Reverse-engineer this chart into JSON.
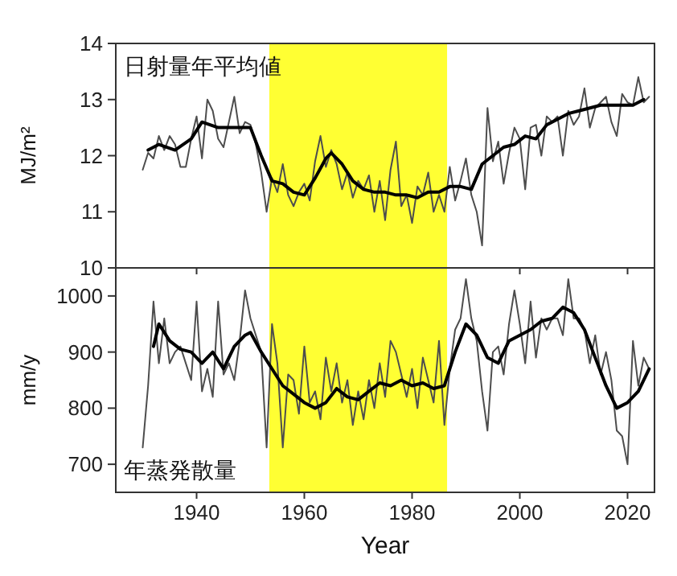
{
  "chart_data": [
    {
      "type": "line",
      "ylabel": "MJ/m²",
      "xlim": [
        1925,
        2025
      ],
      "xticks": [
        1940,
        1960,
        1980,
        2000,
        2020
      ],
      "ylim": [
        10,
        14
      ],
      "yticks": [
        10,
        11,
        12,
        13,
        14
      ],
      "tick_labels": "y",
      "grid": false,
      "annotations": [
        "日射量年平均値"
      ],
      "bands": [
        {
          "axis": "x",
          "from": 1953.5,
          "to": 1986.5,
          "color": "#ffff33"
        }
      ],
      "series": [
        {
          "color": "#4d4d4d",
          "x": [
            1930,
            1931,
            1932,
            1933,
            1934,
            1935,
            1936,
            1937,
            1938,
            1939,
            1940,
            1941,
            1942,
            1943,
            1944,
            1945,
            1946,
            1947,
            1948,
            1949,
            1950,
            1951,
            1952,
            1953,
            1954,
            1955,
            1956,
            1957,
            1958,
            1959,
            1960,
            1961,
            1962,
            1963,
            1964,
            1965,
            1966,
            1967,
            1968,
            1969,
            1970,
            1971,
            1972,
            1973,
            1974,
            1975,
            1976,
            1977,
            1978,
            1979,
            1980,
            1981,
            1982,
            1983,
            1984,
            1985,
            1986,
            1987,
            1988,
            1989,
            1990,
            1991,
            1992,
            1993,
            1994,
            1995,
            1996,
            1997,
            1998,
            1999,
            2000,
            2001,
            2002,
            2003,
            2004,
            2005,
            2006,
            2007,
            2008,
            2009,
            2010,
            2011,
            2012,
            2013,
            2014,
            2015,
            2016,
            2017,
            2018,
            2019,
            2020,
            2021,
            2022,
            2023,
            2024
          ],
          "values": [
            11.75,
            12.05,
            11.95,
            12.35,
            12.1,
            12.35,
            12.2,
            11.8,
            11.8,
            12.3,
            12.7,
            11.95,
            13.0,
            12.8,
            12.3,
            12.15,
            12.6,
            13.05,
            12.4,
            12.6,
            12.55,
            12.2,
            11.7,
            11.0,
            11.6,
            11.35,
            11.85,
            11.3,
            11.1,
            11.35,
            11.5,
            11.2,
            11.9,
            12.35,
            11.8,
            12.1,
            11.85,
            11.4,
            11.7,
            11.25,
            11.55,
            11.4,
            11.65,
            11.0,
            11.55,
            10.85,
            11.75,
            12.25,
            11.1,
            11.3,
            10.8,
            11.45,
            11.3,
            11.7,
            11.0,
            11.3,
            11.0,
            11.8,
            11.2,
            11.55,
            11.95,
            11.3,
            11.0,
            10.4,
            12.85,
            11.9,
            12.25,
            11.5,
            12.05,
            12.5,
            12.3,
            11.4,
            12.5,
            12.55,
            12.0,
            12.7,
            12.6,
            12.7,
            12.0,
            12.8,
            12.55,
            12.7,
            13.2,
            12.5,
            12.85,
            12.95,
            13.05,
            12.6,
            12.35,
            13.1,
            12.95,
            12.9,
            13.4,
            12.95,
            13.05
          ]
        },
        {
          "color": "#000000",
          "x": [
            1931,
            1933,
            1936,
            1939,
            1941,
            1944,
            1947,
            1950,
            1952,
            1954,
            1956,
            1958,
            1960,
            1962,
            1964,
            1965,
            1967,
            1969,
            1971,
            1973,
            1975,
            1977,
            1979,
            1981,
            1983,
            1985,
            1987,
            1989,
            1991,
            1993,
            1995,
            1997,
            1999,
            2001,
            2003,
            2005,
            2007,
            2009,
            2011,
            2013,
            2015,
            2018,
            2021,
            2023
          ],
          "values": [
            12.1,
            12.2,
            12.1,
            12.3,
            12.6,
            12.5,
            12.5,
            12.5,
            12.0,
            11.55,
            11.5,
            11.35,
            11.3,
            11.6,
            11.95,
            12.05,
            11.85,
            11.55,
            11.4,
            11.35,
            11.35,
            11.3,
            11.3,
            11.25,
            11.35,
            11.35,
            11.45,
            11.45,
            11.4,
            11.85,
            12.0,
            12.15,
            12.2,
            12.35,
            12.3,
            12.55,
            12.65,
            12.75,
            12.8,
            12.85,
            12.9,
            12.9,
            12.9,
            13.0
          ]
        }
      ]
    },
    {
      "type": "line",
      "xlabel": "Year",
      "ylabel": "mm/y",
      "xlim": [
        1925,
        2025
      ],
      "xticks": [
        1940,
        1960,
        1980,
        2000,
        2020
      ],
      "ylim": [
        650,
        1050
      ],
      "yticks": [
        700,
        800,
        900,
        1000
      ],
      "grid": false,
      "annotations": [
        "年蒸発散量"
      ],
      "bands": [
        {
          "axis": "x",
          "from": 1953.5,
          "to": 1986.5,
          "color": "#ffff33"
        }
      ],
      "series": [
        {
          "color": "#4d4d4d",
          "x": [
            1930,
            1931,
            1932,
            1933,
            1934,
            1935,
            1936,
            1937,
            1938,
            1939,
            1940,
            1941,
            1942,
            1943,
            1944,
            1945,
            1946,
            1947,
            1948,
            1949,
            1950,
            1951,
            1952,
            1953,
            1954,
            1955,
            1956,
            1957,
            1958,
            1959,
            1960,
            1961,
            1962,
            1963,
            1964,
            1965,
            1966,
            1967,
            1968,
            1969,
            1970,
            1971,
            1972,
            1973,
            1974,
            1975,
            1976,
            1977,
            1978,
            1979,
            1980,
            1981,
            1982,
            1983,
            1984,
            1985,
            1986,
            1987,
            1988,
            1989,
            1990,
            1991,
            1992,
            1993,
            1994,
            1995,
            1996,
            1997,
            1998,
            1999,
            2000,
            2001,
            2002,
            2003,
            2004,
            2005,
            2006,
            2007,
            2008,
            2009,
            2010,
            2011,
            2012,
            2013,
            2014,
            2015,
            2016,
            2017,
            2018,
            2019,
            2020,
            2021,
            2022,
            2023,
            2024
          ],
          "values": [
            730,
            840,
            990,
            880,
            960,
            880,
            900,
            910,
            880,
            850,
            990,
            830,
            870,
            820,
            990,
            860,
            880,
            850,
            920,
            1010,
            960,
            930,
            900,
            730,
            950,
            880,
            730,
            860,
            850,
            790,
            910,
            810,
            830,
            780,
            890,
            830,
            880,
            810,
            850,
            770,
            830,
            780,
            850,
            800,
            880,
            820,
            920,
            900,
            860,
            820,
            870,
            800,
            890,
            850,
            810,
            920,
            770,
            870,
            940,
            960,
            1030,
            960,
            920,
            830,
            760,
            900,
            910,
            860,
            950,
            1010,
            950,
            880,
            990,
            890,
            960,
            940,
            960,
            960,
            930,
            1030,
            960,
            960,
            940,
            880,
            930,
            860,
            900,
            850,
            760,
            750,
            700,
            920,
            840,
            890,
            870
          ]
        },
        {
          "color": "#000000",
          "x": [
            1932,
            1933,
            1935,
            1937,
            1939,
            1941,
            1943,
            1945,
            1947,
            1949,
            1950,
            1952,
            1954,
            1956,
            1958,
            1960,
            1962,
            1964,
            1966,
            1968,
            1970,
            1972,
            1974,
            1976,
            1978,
            1980,
            1982,
            1984,
            1986,
            1988,
            1990,
            1992,
            1994,
            1996,
            1998,
            2000,
            2002,
            2004,
            2006,
            2008,
            2010,
            2012,
            2014,
            2016,
            2018,
            2020,
            2022,
            2024
          ],
          "values": [
            910,
            950,
            920,
            905,
            900,
            880,
            900,
            870,
            910,
            930,
            935,
            900,
            870,
            840,
            825,
            810,
            800,
            810,
            835,
            820,
            815,
            830,
            845,
            840,
            850,
            840,
            845,
            835,
            840,
            900,
            950,
            930,
            890,
            880,
            920,
            930,
            940,
            955,
            960,
            980,
            970,
            940,
            890,
            840,
            800,
            810,
            830,
            870
          ]
        }
      ]
    }
  ]
}
